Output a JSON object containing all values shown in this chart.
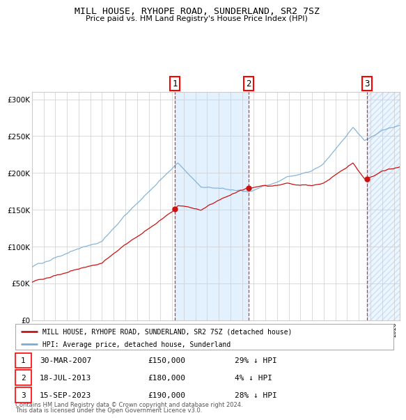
{
  "title": "MILL HOUSE, RYHOPE ROAD, SUNDERLAND, SR2 7SZ",
  "subtitle": "Price paid vs. HM Land Registry's House Price Index (HPI)",
  "legend_line1": "MILL HOUSE, RYHOPE ROAD, SUNDERLAND, SR2 7SZ (detached house)",
  "legend_line2": "HPI: Average price, detached house, Sunderland",
  "transactions": [
    {
      "num": 1,
      "date": "30-MAR-2007",
      "price": 150000,
      "hpi_pct": "29% ↓ HPI",
      "x_year": 2007.25
    },
    {
      "num": 2,
      "date": "18-JUL-2013",
      "price": 180000,
      "hpi_pct": "4% ↓ HPI",
      "x_year": 2013.54
    },
    {
      "num": 3,
      "date": "15-SEP-2023",
      "price": 190000,
      "hpi_pct": "28% ↓ HPI",
      "x_year": 2023.71
    }
  ],
  "footnote1": "Contains HM Land Registry data © Crown copyright and database right 2024.",
  "footnote2": "This data is licensed under the Open Government Licence v3.0.",
  "hpi_color": "#7aadd4",
  "price_color": "#cc1111",
  "bg_color": "#ffffff",
  "grid_color": "#cccccc",
  "shaded_color": "#ddeeff",
  "ylim": [
    0,
    310000
  ],
  "xlim_start": 1995.0,
  "xlim_end": 2026.5
}
